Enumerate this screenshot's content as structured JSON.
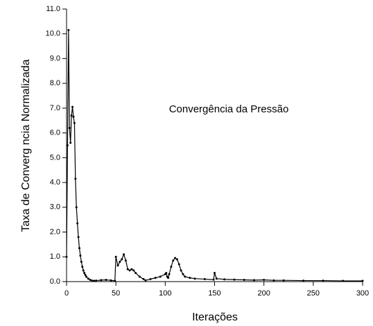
{
  "chart_data": {
    "type": "line",
    "annotation": "Convergência da Pressão",
    "ylabel": "Taxa de Converg  ncia Normalizada",
    "xlabel": "Iterações",
    "xlim": [
      0,
      300
    ],
    "xticks": [
      0,
      50,
      100,
      150,
      200,
      250,
      300
    ],
    "ylim": [
      0,
      11
    ],
    "yticks": [
      {
        "value": 0,
        "label": "0.0"
      },
      {
        "value": 1,
        "label": "1.0"
      },
      {
        "value": 2,
        "label": "2.0"
      },
      {
        "value": 3,
        "label": "3.0"
      },
      {
        "value": 4,
        "label": "4.0"
      },
      {
        "value": 5,
        "label": "5.0"
      },
      {
        "value": 6,
        "label": "6.0"
      },
      {
        "value": 7,
        "label": "7.0"
      },
      {
        "value": 8,
        "label": "8.0"
      },
      {
        "value": 9,
        "label": "9.0"
      },
      {
        "value": 10,
        "label": "10.0"
      },
      {
        "value": 11,
        "label": "11.0"
      }
    ],
    "color": "#000000",
    "x": [
      0,
      1,
      2,
      3,
      4,
      5,
      6,
      7,
      8,
      9,
      10,
      11,
      12,
      13,
      14,
      15,
      16,
      17,
      18,
      19,
      20,
      22,
      24,
      26,
      28,
      30,
      35,
      40,
      45,
      49,
      50,
      52,
      54,
      56,
      58,
      60,
      62,
      64,
      66,
      68,
      70,
      74,
      78,
      80,
      85,
      90,
      95,
      100,
      101,
      102,
      103,
      104,
      106,
      108,
      110,
      112,
      114,
      116,
      118,
      120,
      125,
      130,
      140,
      149,
      150,
      152,
      160,
      170,
      180,
      190,
      200,
      210,
      220,
      240,
      260,
      280,
      300
    ],
    "values": [
      1.0,
      5.5,
      10.15,
      6.2,
      5.6,
      6.7,
      7.05,
      6.65,
      6.4,
      4.15,
      3.0,
      2.35,
      1.8,
      1.35,
      1.05,
      0.8,
      0.6,
      0.45,
      0.35,
      0.27,
      0.2,
      0.12,
      0.07,
      0.04,
      0.03,
      0.04,
      0.06,
      0.07,
      0.05,
      0.03,
      1.0,
      0.65,
      0.8,
      0.9,
      1.1,
      0.85,
      0.5,
      0.45,
      0.5,
      0.45,
      0.35,
      0.2,
      0.1,
      0.05,
      0.1,
      0.15,
      0.2,
      0.3,
      0.35,
      0.2,
      0.15,
      0.3,
      0.6,
      0.85,
      0.95,
      0.9,
      0.7,
      0.45,
      0.3,
      0.2,
      0.15,
      0.12,
      0.1,
      0.08,
      0.35,
      0.12,
      0.09,
      0.08,
      0.07,
      0.06,
      0.07,
      0.05,
      0.05,
      0.04,
      0.04,
      0.03,
      0.03
    ]
  }
}
